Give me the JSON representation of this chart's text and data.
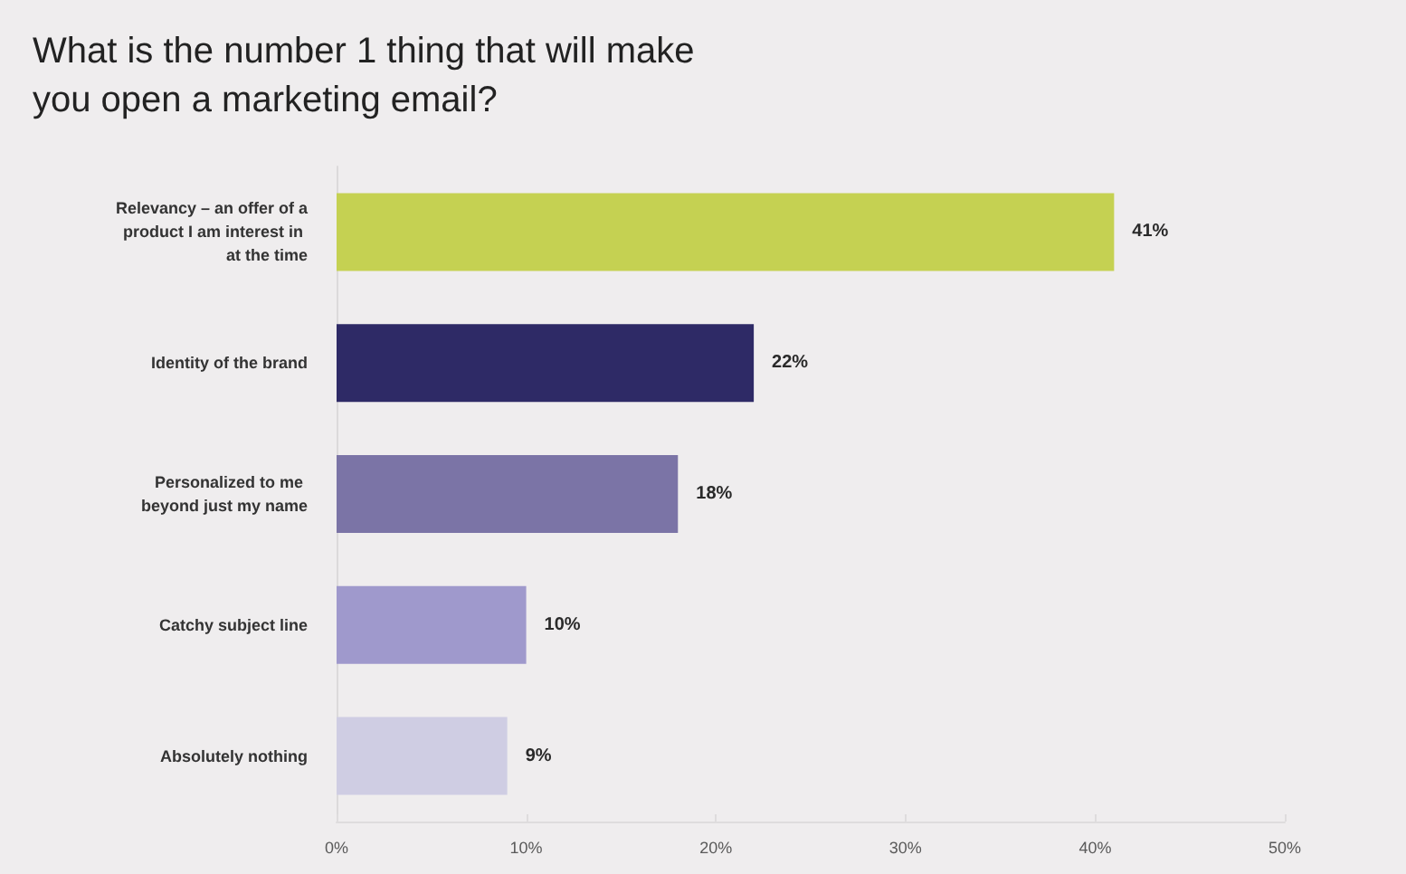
{
  "chart_data": {
    "type": "bar",
    "orientation": "horizontal",
    "title": "What is the number 1 thing that will make you open a marketing email?",
    "categories": [
      "Relevancy – an offer of a product I am interest in at the time",
      "Identity of the brand",
      "Personalized to me beyond just my name",
      "Catchy subject line",
      "Absolutely nothing"
    ],
    "values": [
      41,
      22,
      18,
      10,
      9
    ],
    "colors": [
      "#c5d152",
      "#2e2a66",
      "#7b74a6",
      "#9f99cc",
      "#cfcde3"
    ],
    "value_labels": [
      "41%",
      "22%",
      "18%",
      "10%",
      "9%"
    ],
    "xlim": [
      0,
      50
    ],
    "xticks": [
      {
        "value": 0,
        "label": "0%"
      },
      {
        "value": 10,
        "label": "10%"
      },
      {
        "value": 20,
        "label": "20%"
      },
      {
        "value": 30,
        "label": "30%"
      },
      {
        "value": 40,
        "label": "40%"
      },
      {
        "value": 50,
        "label": "50%"
      }
    ],
    "grid": false
  }
}
